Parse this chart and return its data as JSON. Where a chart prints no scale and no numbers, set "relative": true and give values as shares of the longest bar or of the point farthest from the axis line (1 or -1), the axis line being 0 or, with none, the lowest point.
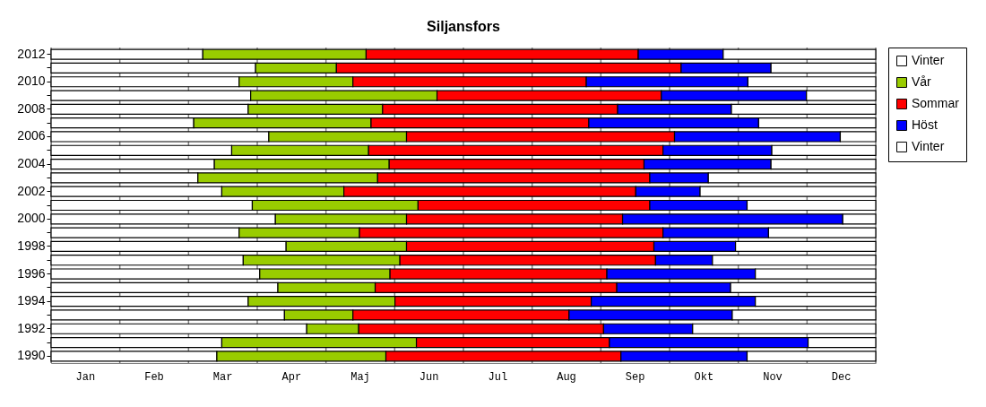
{
  "chart_data": {
    "type": "bar",
    "orientation": "horizontal",
    "stacked": true,
    "relative": true,
    "title": "Siljansfors",
    "categories": [
      "2012",
      null,
      "2010",
      null,
      "2008",
      null,
      "2006",
      null,
      "2004",
      null,
      "2002",
      null,
      "2000",
      null,
      "1998",
      null,
      "1996",
      null,
      "1994",
      null,
      "1992",
      null,
      "1990"
    ],
    "series": [
      {
        "name": "Vinter",
        "color": "#ffffff",
        "values": [
          0.184,
          0.248,
          0.228,
          0.242,
          0.239,
          0.173,
          0.264,
          0.219,
          0.198,
          0.178,
          0.207,
          0.244,
          0.272,
          0.228,
          0.285,
          0.233,
          0.253,
          0.275,
          0.239,
          0.283,
          0.31,
          0.207,
          0.201
        ]
      },
      {
        "name": "Vår",
        "color": "#99cc00",
        "values": [
          0.198,
          0.098,
          0.138,
          0.226,
          0.163,
          0.215,
          0.167,
          0.166,
          0.212,
          0.218,
          0.148,
          0.201,
          0.159,
          0.146,
          0.146,
          0.19,
          0.158,
          0.118,
          0.178,
          0.083,
          0.063,
          0.236,
          0.205
        ]
      },
      {
        "name": "Sommar",
        "color": "#ff0000",
        "values": [
          0.33,
          0.418,
          0.283,
          0.272,
          0.285,
          0.264,
          0.325,
          0.357,
          0.309,
          0.33,
          0.354,
          0.281,
          0.262,
          0.368,
          0.3,
          0.31,
          0.263,
          0.293,
          0.238,
          0.262,
          0.297,
          0.234,
          0.285
        ]
      },
      {
        "name": "Höst",
        "color": "#0000ff",
        "values": [
          0.103,
          0.109,
          0.196,
          0.176,
          0.138,
          0.206,
          0.201,
          0.132,
          0.154,
          0.071,
          0.078,
          0.118,
          0.267,
          0.128,
          0.099,
          0.069,
          0.18,
          0.138,
          0.199,
          0.198,
          0.108,
          0.241,
          0.153
        ]
      },
      {
        "name": "Vinter",
        "color": "#ffffff",
        "values": [
          0.185,
          0.127,
          0.155,
          0.084,
          0.175,
          0.142,
          0.043,
          0.126,
          0.127,
          0.203,
          0.213,
          0.156,
          0.04,
          0.13,
          0.17,
          0.198,
          0.146,
          0.176,
          0.146,
          0.174,
          0.222,
          0.082,
          0.156
        ]
      }
    ],
    "annotations": [
      "Jan",
      "Feb",
      "Mar",
      "Apr",
      "Maj",
      "Jun",
      "Jul",
      "Aug",
      "Sep",
      "Okt",
      "Nov",
      "Dec"
    ],
    "grid": "x",
    "legend": "right"
  }
}
